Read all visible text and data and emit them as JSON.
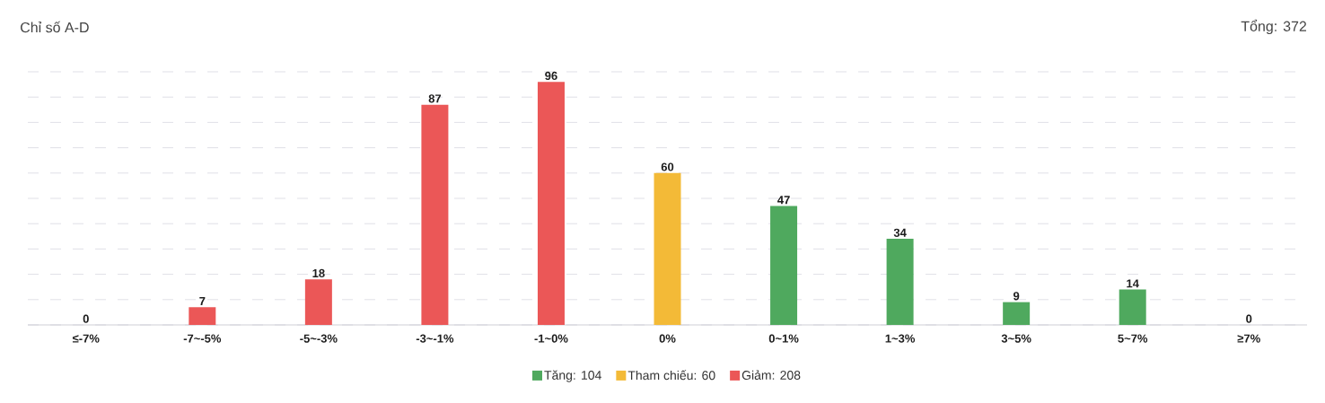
{
  "chart_data": {
    "type": "bar",
    "title": "Chỉ số A-D",
    "annotations": [
      "Tổng: 372"
    ],
    "categories": [
      "≤-7%",
      "-7~-5%",
      "-5~-3%",
      "-3~-1%",
      "-1~0%",
      "0%",
      "0~1%",
      "1~3%",
      "3~5%",
      "5~7%",
      "≥7%"
    ],
    "series": [
      {
        "name": "Tăng: 104",
        "color": "#4fa95e",
        "values": [
          null,
          null,
          null,
          null,
          null,
          null,
          47,
          34,
          9,
          14,
          0
        ]
      },
      {
        "name": "Tham chiếu: 60",
        "color": "#f3ba37",
        "values": [
          null,
          null,
          null,
          null,
          null,
          60,
          null,
          null,
          null,
          null,
          null
        ]
      },
      {
        "name": "Giảm: 208",
        "color": "#eb5757",
        "values": [
          0,
          7,
          18,
          87,
          96,
          null,
          null,
          null,
          null,
          null,
          null
        ]
      }
    ],
    "ylim": [
      0,
      100
    ],
    "yticks": [
      {
        "value": 0,
        "label": null
      },
      {
        "value": 10,
        "label": null
      },
      {
        "value": 20,
        "label": null
      },
      {
        "value": 30,
        "label": null
      },
      {
        "value": 40,
        "label": null
      },
      {
        "value": 50,
        "label": null
      },
      {
        "value": 60,
        "label": null
      },
      {
        "value": 70,
        "label": null
      },
      {
        "value": 80,
        "label": null
      },
      {
        "value": 90,
        "label": null
      },
      {
        "value": 100,
        "label": null
      }
    ],
    "grid": "y",
    "legend": "bottom",
    "tick_labels": "x",
    "data_labels": true
  }
}
